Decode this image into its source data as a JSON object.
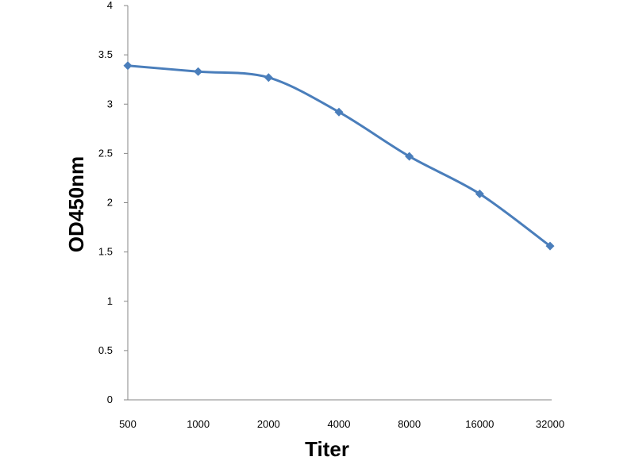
{
  "chart_data": {
    "type": "line",
    "title": "",
    "xlabel": "Titer",
    "ylabel": "OD450nm",
    "categories": [
      "500",
      "1000",
      "2000",
      "4000",
      "8000",
      "16000",
      "32000"
    ],
    "series": [
      {
        "values": [
          3.39,
          3.33,
          3.27,
          2.92,
          2.47,
          2.09,
          1.56
        ],
        "color": "#4a7ebb"
      }
    ],
    "ylim": [
      0,
      4
    ],
    "y_ticks": [
      "0",
      "0.5",
      "1",
      "1.5",
      "2",
      "2.5",
      "3",
      "3.5",
      "4"
    ],
    "grid": false,
    "legend": "none"
  }
}
